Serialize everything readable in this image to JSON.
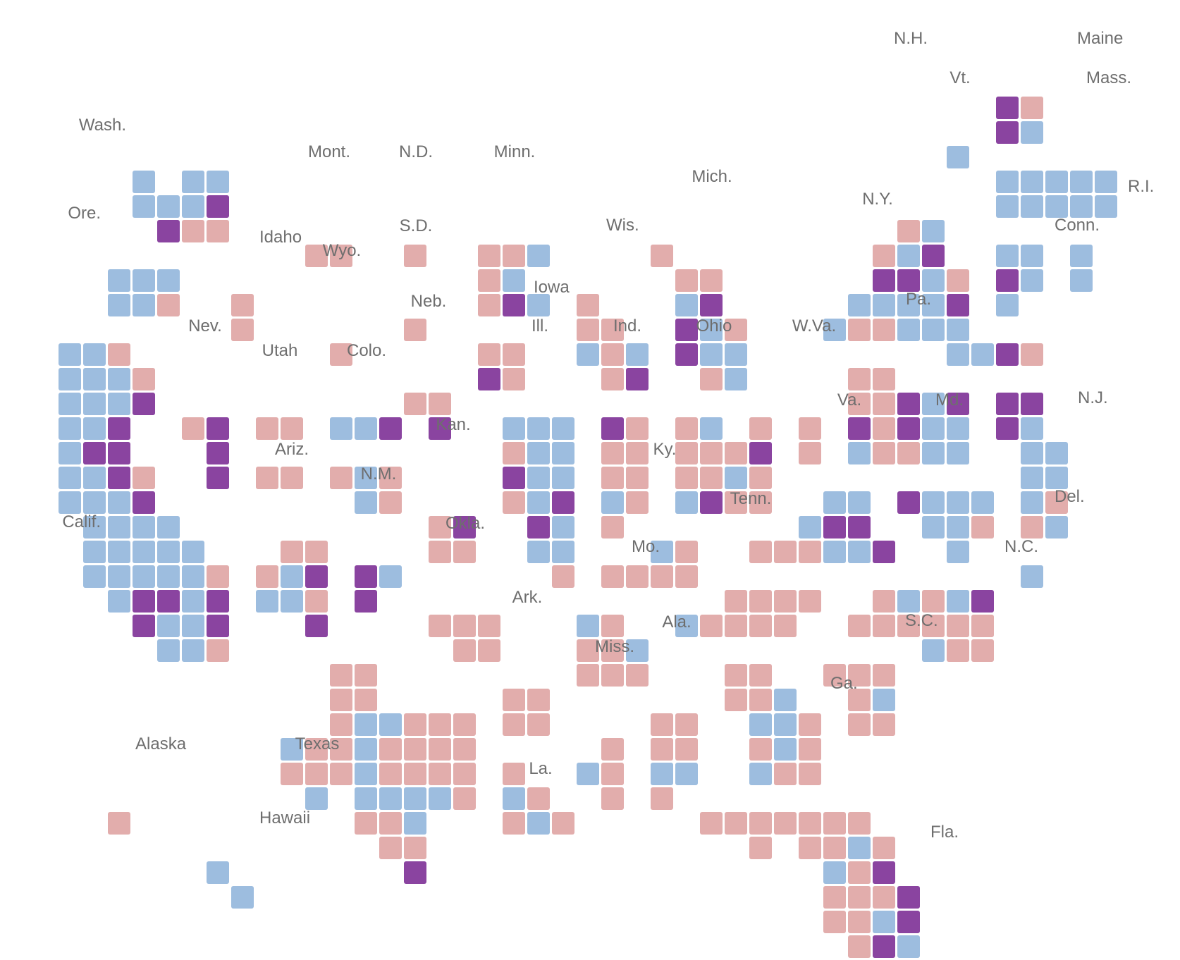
{
  "colors": {
    "rep": "#e2adac",
    "dem": "#9dbddf",
    "tossup": "#8a44a0"
  },
  "state_labels": [
    {
      "id": "nh",
      "text": "N.H."
    },
    {
      "id": "maine",
      "text": "Maine"
    },
    {
      "id": "vt",
      "text": "Vt."
    },
    {
      "id": "mass",
      "text": "Mass."
    },
    {
      "id": "wash",
      "text": "Wash."
    },
    {
      "id": "mont",
      "text": "Mont."
    },
    {
      "id": "nd",
      "text": "N.D."
    },
    {
      "id": "minn",
      "text": "Minn."
    },
    {
      "id": "mich",
      "text": "Mich."
    },
    {
      "id": "ri",
      "text": "R.I."
    },
    {
      "id": "ore",
      "text": "Ore."
    },
    {
      "id": "ny",
      "text": "N.Y."
    },
    {
      "id": "idaho",
      "text": "Idaho"
    },
    {
      "id": "sd",
      "text": "S.D."
    },
    {
      "id": "wis",
      "text": "Wis."
    },
    {
      "id": "conn",
      "text": "Conn."
    },
    {
      "id": "wyo",
      "text": "Wyo."
    },
    {
      "id": "iowa",
      "text": "Iowa"
    },
    {
      "id": "neb",
      "text": "Neb."
    },
    {
      "id": "pa",
      "text": "Pa."
    },
    {
      "id": "nev",
      "text": "Nev."
    },
    {
      "id": "ill",
      "text": "Ill."
    },
    {
      "id": "ind",
      "text": "Ind."
    },
    {
      "id": "ohio",
      "text": "Ohio"
    },
    {
      "id": "wva",
      "text": "W.Va."
    },
    {
      "id": "utah",
      "text": "Utah"
    },
    {
      "id": "colo",
      "text": "Colo."
    },
    {
      "id": "va",
      "text": "Va."
    },
    {
      "id": "md",
      "text": "Md."
    },
    {
      "id": "nj",
      "text": "N.J."
    },
    {
      "id": "kan",
      "text": "Kan."
    },
    {
      "id": "ariz",
      "text": "Ariz."
    },
    {
      "id": "ky",
      "text": "Ky."
    },
    {
      "id": "nm",
      "text": "N.M."
    },
    {
      "id": "del",
      "text": "Del."
    },
    {
      "id": "tenn",
      "text": "Tenn."
    },
    {
      "id": "calif",
      "text": "Calif."
    },
    {
      "id": "okla",
      "text": "Okla."
    },
    {
      "id": "mo",
      "text": "Mo."
    },
    {
      "id": "nc",
      "text": "N.C."
    },
    {
      "id": "ark",
      "text": "Ark."
    },
    {
      "id": "sc",
      "text": "S.C."
    },
    {
      "id": "ala",
      "text": "Ala."
    },
    {
      "id": "miss",
      "text": "Miss."
    },
    {
      "id": "ga",
      "text": "Ga."
    },
    {
      "id": "alaska",
      "text": "Alaska"
    },
    {
      "id": "texas",
      "text": "Texas"
    },
    {
      "id": "la",
      "text": "La."
    },
    {
      "id": "fla",
      "text": "Fla."
    },
    {
      "id": "hawaii",
      "text": "Hawaii"
    }
  ],
  "districts": [
    "40 17 T,41 17 R",
    "40 18 T,41 18 D",
    "38 19 D,40 20 D,41 20 D,42 20 D,43 20 D,44 20 D",
    "40 21 D,41 21 D,42 21 D,43 21 D,44 21 D",
    "5 20 D,7 20 D,8 20 D",
    "5 21 D,6 21 D,7 21 D,8 21 T",
    "6 22 T,7 22 R,8 22 R",
    "36 22 R,37 22 D",
    "12 23 R,13 23 R",
    "16 23 R",
    "19 23 R,20 23 R,21 23 D",
    "26 23 R",
    "35 23 R,36 23 D,37 23 T",
    "40 23 D,41 23 D",
    "43 23 D",
    "4 24 D,5 24 D,6 24 D",
    "19 24 R,20 24 D",
    "27 24 R,28 24 R",
    "35 24 T,36 24 T,37 24 D,38 24 R",
    "40 24 T,41 24 D",
    "43 24 D",
    "4 25 D,5 25 D,6 25 R",
    "9 25 R",
    "19 25 R,20 25 T,21 25 D",
    "23 25 R",
    "27 25 D,28 25 T",
    "34 25 D,35 25 D,36 25 D,37 25 D,38 25 T",
    "40 25 D",
    "9 26 R",
    "16 26 R",
    "23 26 R,24 26 R",
    "27 26 T,28 26 D,29 26 R",
    "33 26 D,34 26 R,35 26 R,36 26 D,37 26 D,38 26 D",
    "2 27 D,3 27 D,4 27 R",
    "13 27 R",
    "19 27 R,20 27 R",
    "23 27 D,24 27 R,25 27 D",
    "27 27 T,28 27 D,29 27 D",
    "38 27 D,39 27 D,40 27 T,41 27 R",
    "2 28 D,3 28 D,4 28 D,5 28 R",
    "19 28 T,20 28 R",
    "24 28 R,25 28 T",
    "28 28 R,29 28 D",
    "34 28 R,35 28 R",
    "2 29 D,3 29 D,4 29 D,5 29 T",
    "16 29 R,17 29 R",
    "34 29 R,35 29 R,36 29 T,37 29 D,38 29 T",
    "40 29 T,41 29 T",
    "2 30 D,3 30 D,4 30 T",
    "7 30 R,8 30 T",
    "10 30 R,11 30 R",
    "13 30 D,14 30 D,15 30 T",
    "17 30 T",
    "20 30 D,21 30 D,22 30 D",
    "24 30 T,25 30 R",
    "27 30 R,28 30 D",
    "30 30 R",
    "32 30 R",
    "34 30 T,35 30 R,36 30 T,37 30 D,38 30 D",
    "40 30 T,41 30 D",
    "2 31 D,3 31 T,4 31 T",
    "8 31 T",
    "20 31 R,21 31 D,22 31 D",
    "24 31 R,25 31 R",
    "27 31 R,28 31 R,29 31 R,30 31 T",
    "32 31 R",
    "34 31 D,35 31 R,36 31 R,37 31 D,38 31 D",
    "41 31 D,42 31 D",
    "2 32 D,3 32 D,4 32 T,5 32 R",
    "8 32 T",
    "10 32 R,11 32 R",
    "13 32 R,14 32 D,15 32 R",
    "20 32 T,21 32 D,22 32 D",
    "24 32 R,25 32 R",
    "27 32 R,28 32 R,29 32 D,30 32 R",
    "41 32 D,42 32 D",
    "2 33 D,3 33 D,4 33 D,5 33 T",
    "14 33 D,15 33 R",
    "20 33 R,21 33 D,22 33 T",
    "24 33 D,25 33 R",
    "27 33 D,28 33 T,29 33 R,30 33 R",
    "33 33 D,34 33 D",
    "36 33 T,37 33 D,38 33 D,39 33 D",
    "41 33 D,42 33 R",
    "3 34 D,4 34 D,5 34 D,6 34 D",
    "17 34 R,18 34 T",
    "21 34 T,22 34 D",
    "24 34 R",
    "32 34 D,33 34 T,34 34 T",
    "37 34 D,38 34 D,39 34 R",
    "41 34 R,42 34 D",
    "3 35 D,4 35 D,5 35 D,6 35 D,7 35 D",
    "11 35 R,12 35 R",
    "17 35 R,18 35 R",
    "21 35 D,22 35 D",
    "26 35 D,27 35 R",
    "30 35 R,31 35 R,32 35 R,33 35 D,34 35 D,35 35 T",
    "38 35 D",
    "3 36 D,4 36 D,5 36 D,6 36 D,7 36 D,8 36 R",
    "10 36 R,11 36 D,12 36 T",
    "14 36 T,15 36 D",
    "22 36 R",
    "24 36 R,25 36 R,26 36 R,27 36 R",
    "41 36 D",
    "4 37 D,5 37 T,6 37 T,7 37 D,8 37 T",
    "10 37 D,11 37 D,12 37 R",
    "14 37 T",
    "29 37 R,30 37 R,31 37 R,32 37 R",
    "35 37 R,36 37 D,37 37 R,38 37 D,39 37 T",
    "5 38 T,6 38 D,7 38 D,8 38 T",
    "12 38 T",
    "17 38 R,18 38 R,19 38 R",
    "23 38 D,24 38 R",
    "27 38 D,28 38 R,29 38 R,30 38 R,31 38 R",
    "34 38 R,35 38 R,36 38 R,37 38 R,38 38 R,39 38 R",
    "6 39 D,7 39 D,8 39 R",
    "18 39 R,19 39 R",
    "23 39 R,24 39 R,25 39 D",
    "37 39 D,38 39 R,39 39 R",
    "13 40 R,14 40 R",
    "23 40 R,24 40 R,25 40 R",
    "29 40 R,30 40 R",
    "33 40 R,34 40 R,35 40 R",
    "13 41 R,14 41 R",
    "20 41 R,21 41 R",
    "29 41 R,30 41 R,31 41 D",
    "34 41 R,35 41 D",
    "13 42 R,14 42 D,15 42 D,16 42 R,17 42 R,18 42 R",
    "20 42 R,21 42 R",
    "26 42 R,27 42 R",
    "30 42 D,31 42 D,32 42 R",
    "34 42 R,35 42 R",
    "11 43 D,12 43 R,13 43 R,14 43 D,15 43 R,16 43 R,17 43 R,18 43 R",
    "24 43 R",
    "26 43 R,27 43 R",
    "30 43 R,31 43 D,32 43 R",
    "11 44 R,12 44 R,13 44 R,14 44 D,15 44 R,16 44 R,17 44 R,18 44 R",
    "20 44 R",
    "23 44 D,24 44 R",
    "26 44 D,27 44 D",
    "30 44 D,31 44 R,32 44 R",
    "12 45 D",
    "14 45 D,15 45 D,16 45 D,17 45 D,18 45 R",
    "20 45 D,21 45 R",
    "24 45 R",
    "26 45 R",
    "4 46 R",
    "14 46 R,15 46 R,16 46 D",
    "20 46 R,21 46 D,22 46 R",
    "28 46 R,29 46 R,30 46 R,31 46 R,32 46 R,33 46 R,34 46 R",
    "15 47 R,16 47 R",
    "30 47 R",
    "32 47 R,33 47 R,34 47 D,35 47 R",
    "16 48 T",
    "33 48 D,34 48 R,35 48 T",
    "8 48 D",
    "33 49 R,34 49 R,35 49 R,36 49 T",
    "9 49 D",
    "33 50 R,34 50 R,35 50 D,36 50 T",
    "34 51 R,35 51 T,36 51 D",
    "36 52 R",
    "35 53 R"
  ]
}
